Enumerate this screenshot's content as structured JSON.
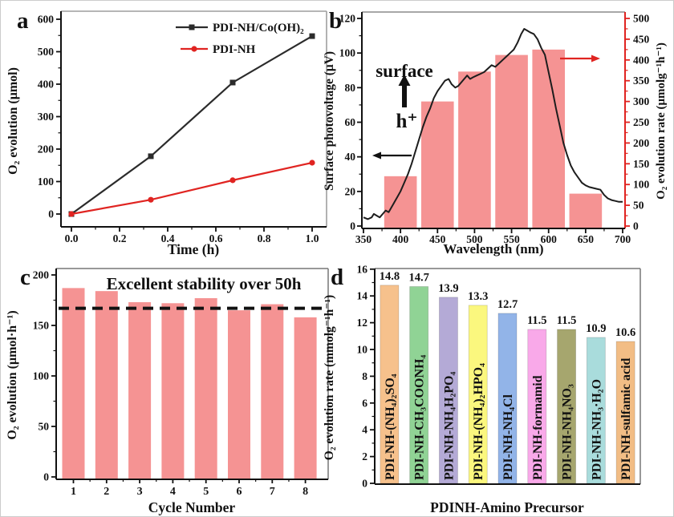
{
  "colors": {
    "salmon_bar": "#f59393",
    "red_accent": "#e02421",
    "black_line": "#1d1d1d",
    "gray_spine": "#9e9e9e",
    "dark_text": "#111111"
  },
  "chart_data": [
    {
      "id": "a",
      "panel_letter": "a",
      "type": "line",
      "xlabel": "Time (h)",
      "ylabel": "O₂ evolution (μmol)",
      "xlim": [
        0,
        1.0
      ],
      "ylim": [
        0,
        600
      ],
      "xticks": [
        0,
        0.2,
        0.4,
        0.6,
        0.8,
        1.0
      ],
      "xtick_labels": [
        "0.0",
        "0.2",
        "0.4",
        "0.6",
        "0.8",
        "1.0"
      ],
      "yticks": [
        0,
        100,
        200,
        300,
        400,
        500,
        600
      ],
      "grid": false,
      "legend_position": "top-right",
      "series": [
        {
          "name": "PDI-NH/Co(OH)₂",
          "color": "#2b2b2b",
          "marker": "square",
          "x": [
            0,
            0.33,
            0.67,
            1.0
          ],
          "y": [
            0,
            178,
            405,
            548
          ]
        },
        {
          "name": "PDI-NH",
          "color": "#e02421",
          "marker": "circle",
          "x": [
            0,
            0.33,
            0.67,
            1.0
          ],
          "y": [
            0,
            44,
            104,
            158
          ]
        }
      ]
    },
    {
      "id": "b",
      "panel_letter": "b",
      "type": "line+bar",
      "xlabel": "Wavelength (nm)",
      "ylabel_left": "Surface photovoltage (μV)",
      "ylabel_right": "O₂ evolution rate (μmolg⁻¹h⁻¹)",
      "xlim": [
        350,
        700
      ],
      "ylim_left": [
        0,
        120
      ],
      "ylim_right": [
        0,
        500
      ],
      "xticks": [
        350,
        400,
        450,
        500,
        550,
        600,
        650,
        700
      ],
      "yticks_left": [
        0,
        20,
        40,
        60,
        80,
        100,
        120
      ],
      "yticks_right": [
        0,
        50,
        100,
        150,
        200,
        250,
        300,
        350,
        400,
        450,
        500
      ],
      "bars": {
        "centers_nm": [
          400,
          450,
          500,
          550,
          600,
          650
        ],
        "width_nm": 44,
        "values_right_axis": [
          120,
          300,
          372,
          412,
          425,
          78
        ],
        "color": "#f59393"
      },
      "line": {
        "name": "surface photovoltage spectrum",
        "color": "#1d1d1d",
        "x": [
          350,
          356,
          361,
          364,
          368,
          372,
          376,
          380,
          384,
          388,
          392,
          396,
          400,
          405,
          410,
          415,
          420,
          425,
          430,
          435,
          440,
          445,
          450,
          455,
          460,
          465,
          469,
          474,
          478,
          482,
          486,
          490,
          494,
          498,
          503,
          508,
          513,
          518,
          523,
          528,
          533,
          538,
          543,
          548,
          553,
          558,
          563,
          567,
          571,
          575,
          580,
          585,
          590,
          595,
          600,
          605,
          610,
          615,
          620,
          625,
          630,
          635,
          640,
          645,
          650,
          655,
          660,
          665,
          670,
          675,
          680,
          685,
          690,
          695,
          700
        ],
        "y": [
          5,
          4,
          5,
          7,
          6,
          5,
          7,
          9,
          8,
          11,
          14,
          17,
          20,
          25,
          30,
          36,
          43,
          50,
          57,
          63,
          68,
          74,
          78,
          81,
          84,
          85,
          82,
          80,
          81,
          83,
          85,
          87,
          85,
          86,
          87,
          88,
          89,
          91,
          93,
          92,
          94,
          96,
          98,
          100,
          102,
          106,
          111,
          114,
          113,
          112,
          111,
          108,
          103,
          99,
          89,
          79,
          68,
          58,
          48,
          41,
          35,
          31,
          28,
          25,
          23.5,
          22.5,
          22,
          21.5,
          21,
          18,
          16,
          15,
          14.5,
          14,
          14
        ]
      },
      "annotations": {
        "surface_label": "surface",
        "hole_label": "h⁺"
      }
    },
    {
      "id": "c",
      "panel_letter": "c",
      "type": "bar",
      "title": "Excellent stability over 50h",
      "xlabel": "Cycle Number",
      "ylabel": "O₂ evolution (μmol·h⁻¹)",
      "categories": [
        "1",
        "2",
        "3",
        "4",
        "5",
        "6",
        "7",
        "8"
      ],
      "values": [
        187,
        184,
        173,
        172,
        177,
        165,
        171,
        158
      ],
      "dashed_line_value": 167,
      "ylim": [
        0,
        200
      ],
      "yticks": [
        0,
        50,
        100,
        150,
        200
      ],
      "bar_color": "#f59393"
    },
    {
      "id": "d",
      "panel_letter": "d",
      "type": "bar",
      "xlabel": "PDINH-Amino Precursor",
      "ylabel": "O₂ evolution rate (mmolg⁻¹h⁻¹)",
      "categories": [
        "PDI-NH-(NH₄)₂SO₄",
        "PDI-NH-CH₃COONH₄",
        "PDI-NH-NH₄H₂PO₄",
        "PDI-NH-(NH₄)₂HPO₄",
        "PDI-NH-NH₄Cl",
        "PDI-NH-formamid",
        "PDI-NH-NH₄NO₃",
        "PDI-NH-NH₃·H₂O",
        "PDI-NH-sulfamic acid"
      ],
      "values": [
        14.8,
        14.7,
        13.9,
        13.3,
        12.7,
        11.5,
        11.5,
        10.9,
        10.6
      ],
      "value_labels": [
        "14.8",
        "14.7",
        "13.9",
        "13.3",
        "12.7",
        "11.5",
        "11.5",
        "10.9",
        "10.6"
      ],
      "ylim": [
        0,
        16
      ],
      "yticks": [
        0,
        2,
        4,
        6,
        8,
        10,
        12,
        14,
        16
      ],
      "bar_colors": [
        "#f6c18c",
        "#90d395",
        "#b4aad6",
        "#fbf77e",
        "#92b4e8",
        "#f9a9e9",
        "#a6a66e",
        "#a9dcdc",
        "#f2bd85"
      ]
    }
  ]
}
